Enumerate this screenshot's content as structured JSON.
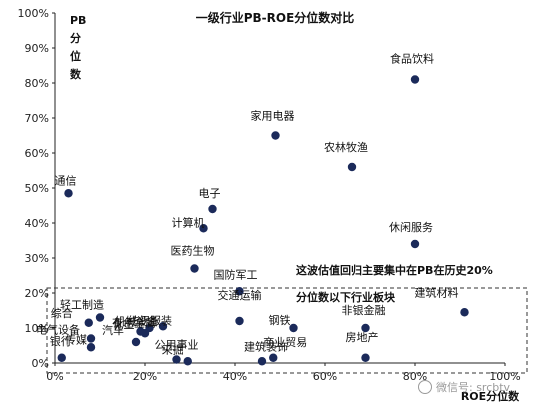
{
  "chart_data": {
    "type": "scatter",
    "title": "一级行业PB-ROE分位数对比",
    "xlabel": "ROE分位数",
    "ylabel": "PB分位数",
    "xlim": [
      0,
      100
    ],
    "ylim": [
      0,
      100
    ],
    "x_ticks": [
      "0%",
      "20%",
      "40%",
      "60%",
      "80%",
      "100%"
    ],
    "y_ticks": [
      "0%",
      "10%",
      "20%",
      "30%",
      "40%",
      "50%",
      "60%",
      "70%",
      "80%",
      "90%",
      "100%"
    ],
    "grid": false,
    "point_color": "#1b2a5a",
    "points": [
      {
        "label": "食品饮料",
        "x": 80,
        "y": 81
      },
      {
        "label": "家用电器",
        "x": 49,
        "y": 65
      },
      {
        "label": "农林牧渔",
        "x": 66,
        "y": 56
      },
      {
        "label": "通信",
        "x": 3,
        "y": 48.5
      },
      {
        "label": "电子",
        "x": 35,
        "y": 44
      },
      {
        "label": "计算机",
        "x": 33,
        "y": 38.5
      },
      {
        "label": "休闲服务",
        "x": 80,
        "y": 34
      },
      {
        "label": "医药生物",
        "x": 31,
        "y": 27
      },
      {
        "label": "国防军工",
        "x": 41,
        "y": 20.5
      },
      {
        "label": "建筑材料",
        "x": 91,
        "y": 14.5
      },
      {
        "label": "轻工制造",
        "x": 10,
        "y": 13
      },
      {
        "label": "综合",
        "x": 7.5,
        "y": 11.5
      },
      {
        "label": "纺织服装",
        "x": 24,
        "y": 10.5
      },
      {
        "label": "机械设备",
        "x": 21,
        "y": 10
      },
      {
        "label": "钢铁",
        "x": 53,
        "y": 10
      },
      {
        "label": "交通运输",
        "x": 41,
        "y": 12
      },
      {
        "label": "非银金融",
        "x": 69,
        "y": 10
      },
      {
        "label": "化工",
        "x": 19,
        "y": 9
      },
      {
        "label": "电气设备",
        "x": 8,
        "y": 7
      },
      {
        "label": "有色金属",
        "x": 20,
        "y": 8.5
      },
      {
        "label": "传媒",
        "x": 8,
        "y": 4.5
      },
      {
        "label": "汽车",
        "x": 18,
        "y": 6
      },
      {
        "label": "公用事业",
        "x": 27,
        "y": 1
      },
      {
        "label": "采掘",
        "x": 29.5,
        "y": 0.5
      },
      {
        "label": "建筑装饰",
        "x": 46,
        "y": 0.5
      },
      {
        "label": "商业贸易",
        "x": 48.5,
        "y": 1.5
      },
      {
        "label": "房地产",
        "x": 69,
        "y": 1.5
      },
      {
        "label": "银行",
        "x": 1.5,
        "y": 1.5
      }
    ],
    "annotation_line1": "这波估值回归主要集中在PB在历史20%",
    "annotation_line2": "分位数以下行业板块",
    "annotation_box": {
      "x_range": [
        0,
        100
      ],
      "y_range": [
        0,
        22
      ],
      "style": "dashed"
    }
  },
  "watermark": "微信号: srcbtv"
}
